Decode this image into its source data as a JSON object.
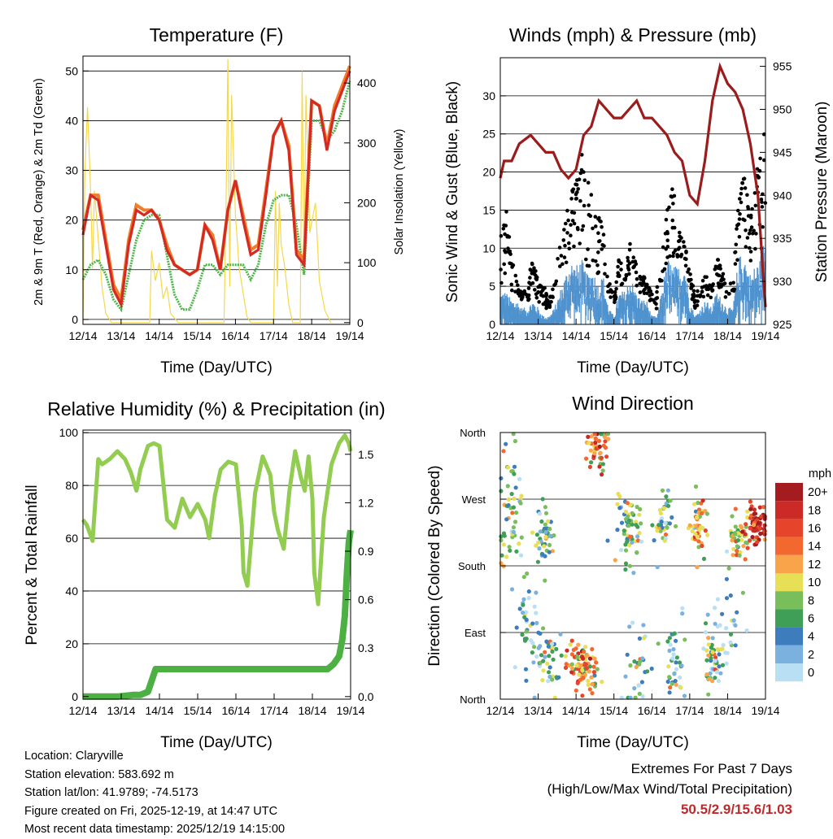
{
  "colors": {
    "temp_red": "#d42a24",
    "temp_orange": "#f07d2a",
    "dewpoint_green": "#4cb649",
    "solar_yellow": "#f5d84b",
    "wind_blue": "#4f92cf",
    "gust_black": "#000000",
    "pressure_maroon": "#9b1c1c",
    "rh_lightgreen": "#92cc51",
    "rain_green": "#4cb043",
    "extremes_red": "#c0282a"
  },
  "x_ticks": [
    "12/14",
    "13/14",
    "14/14",
    "15/14",
    "16/14",
    "17/14",
    "18/14",
    "19/14"
  ],
  "x_label": "Time (Day/UTC)",
  "chart_data": [
    {
      "id": "temperature",
      "type": "line",
      "title": "Temperature (F)",
      "xlabel": "Time (Day/UTC)",
      "ylabel": "2m & 9m T (Red, Orange) & 2m Td (Green)",
      "y2label": "Solar Insolation (Yellow)",
      "ylim": [
        -1,
        53
      ],
      "y2lim": [
        -3,
        445
      ],
      "yticks": [
        0,
        10,
        20,
        30,
        40,
        50
      ],
      "y2ticks": [
        0,
        100,
        200,
        300,
        400
      ],
      "x": [
        0,
        0.2,
        0.4,
        0.6,
        0.8,
        1,
        1.2,
        1.4,
        1.6,
        1.8,
        2,
        2.2,
        2.4,
        2.6,
        2.8,
        3,
        3.2,
        3.4,
        3.6,
        3.8,
        4,
        4.2,
        4.4,
        4.6,
        4.8,
        5,
        5.2,
        5.4,
        5.6,
        5.8,
        6,
        6.2,
        6.4,
        6.6,
        6.8,
        7
      ],
      "series": [
        {
          "name": "2m T",
          "color": "#d42a24",
          "values": [
            17,
            25,
            24,
            15,
            6,
            3,
            15,
            22,
            21,
            22,
            20,
            14,
            11,
            10,
            9,
            10,
            19,
            16,
            10,
            22,
            28,
            20,
            13,
            14,
            25,
            37,
            40,
            34,
            13,
            11,
            44,
            43,
            34,
            42,
            46,
            50
          ]
        },
        {
          "name": "9m T",
          "color": "#f07d2a",
          "values": [
            18,
            25,
            25,
            16,
            7,
            4,
            16,
            23,
            22,
            22,
            20,
            15,
            11,
            10,
            9,
            10,
            19,
            17,
            10,
            22,
            28,
            21,
            14,
            15,
            26,
            37,
            40,
            35,
            14,
            12,
            44,
            43,
            35,
            43,
            47,
            51
          ]
        },
        {
          "name": "2m Td",
          "color": "#4cb649",
          "values": [
            8,
            11,
            12,
            9,
            4,
            2,
            9,
            16,
            20,
            21,
            21,
            13,
            5,
            2,
            2,
            6,
            11,
            11,
            9,
            11,
            11,
            11,
            8,
            11,
            19,
            24,
            25,
            25,
            19,
            9,
            40,
            40,
            36,
            38,
            42,
            48
          ]
        }
      ],
      "solar": {
        "name": "Solar Insolation",
        "color": "#f5d84b",
        "x": [
          0,
          0.05,
          0.12,
          0.2,
          0.25,
          0.3,
          0.4,
          0.5,
          0.6,
          0.75,
          1.75,
          1.8,
          1.9,
          2.0,
          2.1,
          2.2,
          2.3,
          2.5,
          3.7,
          3.75,
          3.8,
          3.85,
          3.9,
          4.0,
          4.1,
          4.2,
          4.3,
          4.4,
          5.0,
          5.05,
          5.1,
          5.15,
          5.2,
          5.3,
          5.4,
          5.5,
          5.7,
          5.75,
          5.8,
          5.85,
          5.95,
          6.1,
          6.2,
          6.35,
          6.5
        ],
        "values": [
          0,
          250,
          360,
          220,
          90,
          220,
          140,
          60,
          15,
          0,
          0,
          120,
          70,
          100,
          40,
          60,
          15,
          0,
          0,
          180,
          440,
          60,
          380,
          180,
          90,
          50,
          10,
          0,
          0,
          220,
          60,
          200,
          130,
          90,
          30,
          0,
          0,
          420,
          100,
          380,
          150,
          200,
          70,
          20,
          0
        ]
      }
    },
    {
      "id": "winds",
      "type": "scatter",
      "title": "Winds (mph) & Pressure (mb)",
      "xlabel": "Time (Day/UTC)",
      "ylabel": "Sonic Wind & Gust (Blue, Black)",
      "y2label": "Station Pressure (Maroon)",
      "ylim": [
        0,
        35
      ],
      "y2lim": [
        925,
        956
      ],
      "yticks": [
        0,
        5,
        10,
        15,
        20,
        25,
        30
      ],
      "y2ticks": [
        925,
        930,
        935,
        940,
        945,
        950,
        955
      ],
      "wind_envelope": [
        4,
        4,
        3,
        3,
        2,
        2,
        3,
        2,
        1,
        1,
        2,
        4,
        6,
        8,
        7,
        8,
        6,
        7,
        5,
        6,
        2,
        1,
        4,
        4,
        6,
        4,
        3,
        3,
        1,
        1,
        5,
        8,
        7,
        7,
        8,
        3,
        1,
        2,
        3,
        2,
        4,
        3,
        2,
        2,
        8,
        9,
        6,
        7,
        8,
        11
      ],
      "gust_envelope": [
        15,
        16,
        8,
        5,
        3,
        5,
        8,
        5,
        4,
        3,
        5,
        10,
        13,
        16,
        18,
        22,
        20,
        16,
        14,
        12,
        5,
        3,
        8,
        6,
        10,
        8,
        6,
        5,
        3,
        4,
        9,
        15,
        18,
        12,
        11,
        6,
        3,
        4,
        6,
        4,
        8,
        6,
        4,
        5,
        16,
        20,
        14,
        18,
        22,
        28
      ],
      "pressure": {
        "name": "Station Pressure",
        "color": "#9b1c1c",
        "x": [
          0,
          0.1,
          0.3,
          0.5,
          0.8,
          1.0,
          1.2,
          1.4,
          1.6,
          1.8,
          2.0,
          2.2,
          2.4,
          2.6,
          2.8,
          3.0,
          3.2,
          3.4,
          3.6,
          3.8,
          4.0,
          4.2,
          4.4,
          4.6,
          4.8,
          5.0,
          5.2,
          5.4,
          5.6,
          5.8,
          6.0,
          6.2,
          6.4,
          6.6,
          6.8,
          6.95,
          7.0
        ],
        "values": [
          942,
          944,
          944,
          946,
          947,
          946,
          945,
          945,
          943,
          942,
          943,
          947,
          948,
          951,
          950,
          949,
          949,
          950,
          951,
          949,
          949,
          948,
          947,
          945,
          944,
          940,
          939,
          944,
          951,
          955,
          953,
          952,
          950,
          946,
          940,
          930,
          927
        ]
      }
    },
    {
      "id": "humidity",
      "type": "line",
      "title": "Relative Humidity (%) & Precipitation (in)",
      "xlabel": "Time (Day/UTC)",
      "ylabel": "Percent & Total Rainfall",
      "ylim": [
        -1,
        101
      ],
      "y2lim": [
        -0.016,
        1.65
      ],
      "yticks": [
        0,
        20,
        40,
        60,
        80,
        100
      ],
      "y2ticks": [
        0.0,
        0.3,
        0.6,
        0.9,
        1.2,
        1.5
      ],
      "y2ticklabels": [
        "0.0",
        "0.3",
        "0.6",
        "0.9",
        "1.2",
        "1.5"
      ],
      "rh": {
        "name": "Relative Humidity",
        "color": "#92cc51",
        "x": [
          0,
          0.1,
          0.25,
          0.4,
          0.5,
          0.7,
          0.9,
          1.1,
          1.25,
          1.4,
          1.5,
          1.7,
          1.85,
          2.0,
          2.2,
          2.4,
          2.6,
          2.8,
          3.0,
          3.2,
          3.3,
          3.45,
          3.6,
          3.8,
          4.0,
          4.15,
          4.2,
          4.3,
          4.5,
          4.7,
          4.9,
          5.0,
          5.1,
          5.25,
          5.4,
          5.55,
          5.7,
          5.8,
          5.9,
          6.0,
          6.05,
          6.15,
          6.3,
          6.5,
          6.7,
          6.85,
          6.95,
          7.0
        ],
        "values": [
          67,
          65,
          59,
          90,
          88,
          90,
          93,
          90,
          85,
          78,
          86,
          95,
          96,
          95,
          67,
          64,
          75,
          68,
          73,
          67,
          60,
          76,
          86,
          89,
          88,
          65,
          47,
          42,
          77,
          91,
          84,
          70,
          63,
          56,
          78,
          93,
          83,
          78,
          91,
          75,
          47,
          35,
          68,
          88,
          96,
          99,
          96,
          93
        ]
      },
      "rain": {
        "name": "Total Rainfall",
        "color": "#4cb043",
        "x": [
          0,
          0.5,
          0.9,
          1.3,
          1.5,
          1.7,
          1.8,
          1.9,
          2.5,
          3.5,
          4.5,
          5.5,
          6.2,
          6.4,
          6.55,
          6.7,
          6.78,
          6.85,
          6.9,
          6.95,
          7.0
        ],
        "values": [
          0,
          0,
          0,
          0.01,
          0.01,
          0.03,
          0.1,
          0.17,
          0.17,
          0.17,
          0.17,
          0.17,
          0.17,
          0.17,
          0.2,
          0.25,
          0.35,
          0.5,
          0.75,
          0.95,
          1.03
        ]
      }
    },
    {
      "id": "wind_direction",
      "type": "scatter",
      "title": "Wind Direction",
      "xlabel": "Time (Day/UTC)",
      "ylabel": "Direction (Colored By Speed)",
      "ylim": [
        0,
        360
      ],
      "ytick_values": [
        0,
        90,
        180,
        270,
        360
      ],
      "ytick_labels": [
        "North",
        "East",
        "South",
        "West",
        "North"
      ],
      "colorbar": {
        "unit": "mph",
        "labels": [
          "20+",
          "18",
          "16",
          "14",
          "12",
          "10",
          "8",
          "6",
          "4",
          "2",
          "0"
        ],
        "colors": [
          "#a51c20",
          "#cc2a27",
          "#e6452c",
          "#f2682f",
          "#f9a44b",
          "#e7df55",
          "#78bf5b",
          "#3f9f57",
          "#3e7dbd",
          "#7ab1df",
          "#b8dff4"
        ]
      },
      "clusters": [
        {
          "x": 0.3,
          "y": 250,
          "sx": 0.3,
          "sy": 60,
          "n": 55,
          "speed": 3
        },
        {
          "x": 0.7,
          "y": 90,
          "sx": 0.3,
          "sy": 70,
          "n": 40,
          "speed": 2
        },
        {
          "x": 1.2,
          "y": 220,
          "sx": 0.2,
          "sy": 30,
          "n": 45,
          "speed": 3
        },
        {
          "x": 1.3,
          "y": 50,
          "sx": 0.3,
          "sy": 30,
          "n": 40,
          "speed": 3
        },
        {
          "x": 2.2,
          "y": 40,
          "sx": 0.35,
          "sy": 25,
          "n": 90,
          "speed": 6
        },
        {
          "x": 2.6,
          "y": 340,
          "sx": 0.25,
          "sy": 20,
          "n": 50,
          "speed": 6
        },
        {
          "x": 3.4,
          "y": 230,
          "sx": 0.3,
          "sy": 30,
          "n": 70,
          "speed": 4
        },
        {
          "x": 3.6,
          "y": 50,
          "sx": 0.3,
          "sy": 40,
          "n": 30,
          "speed": 2
        },
        {
          "x": 4.3,
          "y": 240,
          "sx": 0.2,
          "sy": 30,
          "n": 40,
          "speed": 3
        },
        {
          "x": 4.6,
          "y": 50,
          "sx": 0.3,
          "sy": 40,
          "n": 40,
          "speed": 2
        },
        {
          "x": 5.2,
          "y": 230,
          "sx": 0.15,
          "sy": 30,
          "n": 50,
          "speed": 6
        },
        {
          "x": 5.6,
          "y": 50,
          "sx": 0.2,
          "sy": 30,
          "n": 50,
          "speed": 3
        },
        {
          "x": 6.3,
          "y": 220,
          "sx": 0.2,
          "sy": 25,
          "n": 45,
          "speed": 5
        },
        {
          "x": 6.75,
          "y": 230,
          "sx": 0.25,
          "sy": 20,
          "n": 70,
          "speed": 9
        },
        {
          "x": 6.0,
          "y": 100,
          "sx": 0.4,
          "sy": 80,
          "n": 30,
          "speed": 1
        }
      ]
    }
  ],
  "info": {
    "location": "Location: Claryville",
    "elevation": "Station elevation: 583.692 m",
    "latlon": "Station lat/lon: 41.9789; -74.5173",
    "created": "Figure created on Fri, 2025-12-19, at 14:47 UTC",
    "recent": "Most recent data timestamp: 2025/12/19 14:15:00"
  },
  "extremes": {
    "title": "Extremes For Past 7 Days",
    "subtitle": "(High/Low/Max Wind/Total Precipitation)",
    "values": "50.5/2.9/15.6/1.03"
  }
}
